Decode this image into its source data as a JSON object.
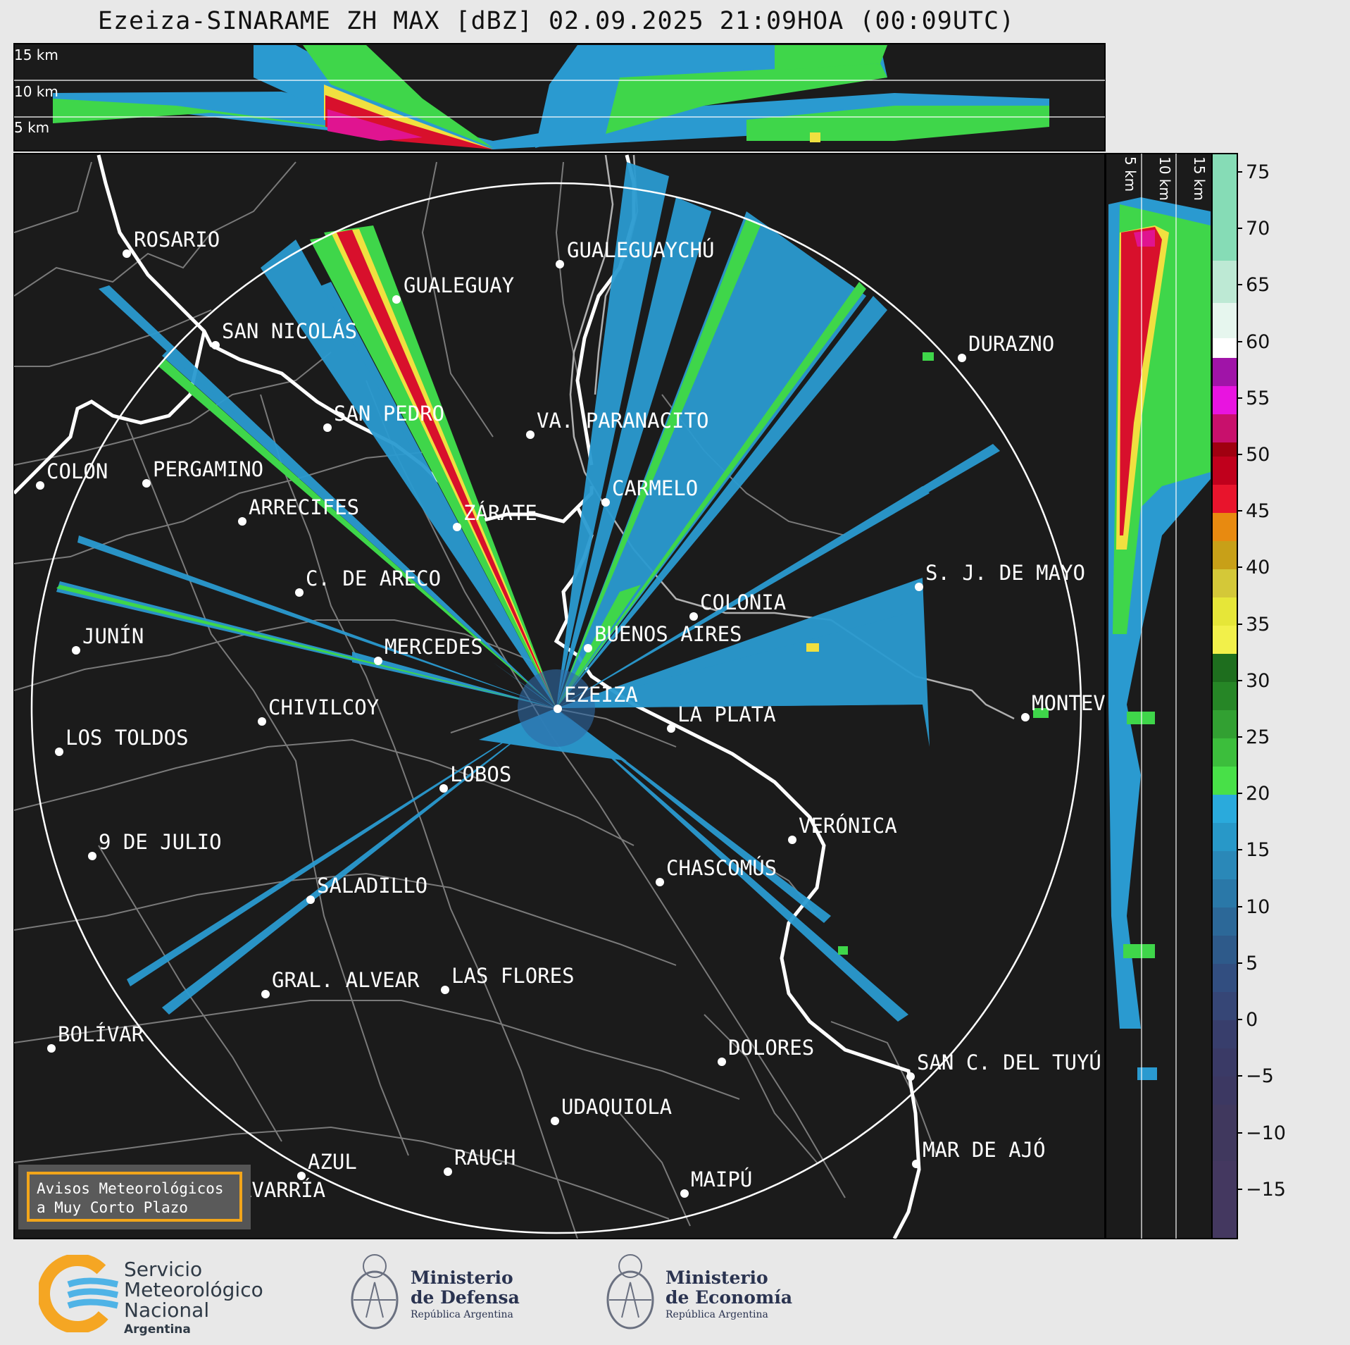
{
  "title": "Ezeiza-SINARAME ZH MAX [dBZ] 02.09.2025 21:09HOA (00:09UTC)",
  "top_panel_height_labels": [
    "15 km",
    "10 km",
    "5 km"
  ],
  "side_panel_height_labels": [
    "5 km",
    "10 km",
    "15 km"
  ],
  "colorbar": {
    "unit": "dBZ",
    "ticks": [
      "75",
      "70",
      "65",
      "60",
      "55",
      "50",
      "45",
      "40",
      "35",
      "30",
      "25",
      "20",
      "15",
      "10",
      "5",
      "0",
      "−5",
      "−10",
      "−15"
    ]
  },
  "radar_site": "EZEIZA",
  "cities": [
    {
      "name": "ROSARIO"
    },
    {
      "name": "GUALEGUAYCHÚ"
    },
    {
      "name": "GUALEGUAY"
    },
    {
      "name": "SAN NICOLÁS"
    },
    {
      "name": "DURAZNO"
    },
    {
      "name": "SAN PEDRO"
    },
    {
      "name": "VA. PARANACITO"
    },
    {
      "name": "COLON"
    },
    {
      "name": "PERGAMINO"
    },
    {
      "name": "CARMELO"
    },
    {
      "name": "ARRECIFES"
    },
    {
      "name": "ZÁRATE"
    },
    {
      "name": "S. J. DE MAYO"
    },
    {
      "name": "C. DE ARECO"
    },
    {
      "name": "COLONIA"
    },
    {
      "name": "JUNÍN"
    },
    {
      "name": "BUENOS AIRES"
    },
    {
      "name": "MERCEDES"
    },
    {
      "name": "EZEIZA"
    },
    {
      "name": "MONTEVIDEO"
    },
    {
      "name": "CHIVILCOY"
    },
    {
      "name": "LA PLATA"
    },
    {
      "name": "LOS TOLDOS"
    },
    {
      "name": "LOBOS"
    },
    {
      "name": "VERÓNICA"
    },
    {
      "name": "9 DE JULIO"
    },
    {
      "name": "CHASCOMÚS"
    },
    {
      "name": "SALADILLO"
    },
    {
      "name": "GRAL. ALVEAR"
    },
    {
      "name": "LAS FLORES"
    },
    {
      "name": "BOLÍVAR"
    },
    {
      "name": "DOLORES"
    },
    {
      "name": "SAN C. DEL TUYÚ"
    },
    {
      "name": "UDAQUIOLA"
    },
    {
      "name": "MAR DE AJÓ"
    },
    {
      "name": "AZUL"
    },
    {
      "name": "RAUCH"
    },
    {
      "name": "OLAVARRÍA"
    },
    {
      "name": "MAIPÚ"
    }
  ],
  "warning_box": {
    "line1": "Avisos Meteorológicos",
    "line2": "a Muy Corto Plazo"
  },
  "footer": {
    "smn": {
      "l1": "Servicio",
      "l2": "Meteorológico",
      "l3": "Nacional",
      "country": "Argentina"
    },
    "defensa": {
      "l1": "Ministerio",
      "l2": "de Defensa",
      "sub": "República Argentina"
    },
    "economia": {
      "l1": "Ministerio",
      "l2": "de Economía",
      "sub": "República Argentina"
    }
  },
  "colors": {
    "background": "#1b1b1b",
    "frame": "#e8e8e8",
    "accent": "#f2a51a",
    "coast": "#ffffff",
    "borders": "#7a7a7a"
  }
}
